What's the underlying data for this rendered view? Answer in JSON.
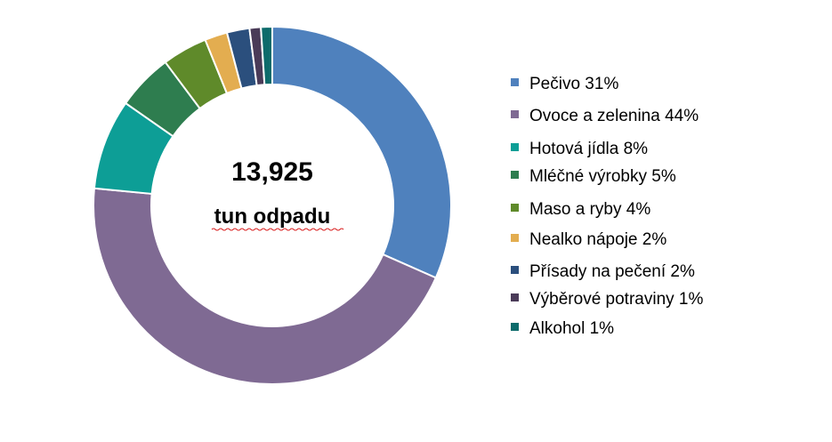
{
  "chart_data": {
    "type": "pie",
    "variant": "donut",
    "center_total": "13,925",
    "center_caption": "tun odpadu",
    "legend_position": "right",
    "categories": [
      "Pečivo 31%",
      "Ovoce a zelenina 44%",
      "Hotová jídla 8%",
      "Mléčné výrobky  5%",
      "Maso a ryby 4%",
      "Nealko nápoje 2%",
      "Přísady na pečení 2%",
      "Výběrové potraviny 1%",
      "Alkohol  1%"
    ],
    "values": [
      31,
      44,
      8,
      5,
      4,
      2,
      2,
      1,
      1
    ],
    "colors": [
      "#4f81bd",
      "#7f6a93",
      "#0d9e96",
      "#2e7d4f",
      "#5f8a2a",
      "#e3ad50",
      "#2b4f7d",
      "#4a3b58",
      "#0d6b6b"
    ]
  }
}
